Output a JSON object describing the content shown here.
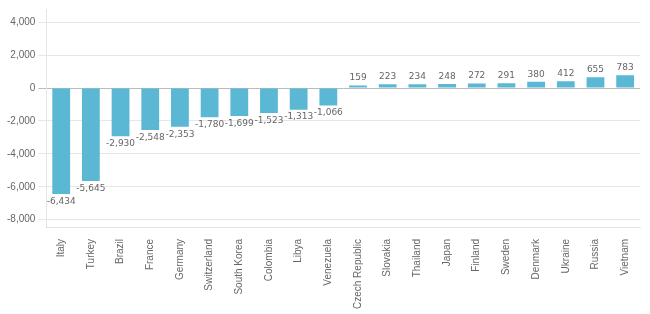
{
  "chart_data": {
    "type": "bar",
    "categories": [
      "Italy",
      "Turkey",
      "Brazil",
      "France",
      "Germany",
      "Switzerland",
      "South Korea",
      "Colombia",
      "Libya",
      "Venezuela",
      "Czech Republic",
      "Slovakia",
      "Thailand",
      "Japan",
      "Finland",
      "Sweden",
      "Denmark",
      "Ukraine",
      "Russia",
      "Vietnam"
    ],
    "values": [
      -6434,
      -5645,
      -2930,
      -2548,
      -2353,
      -1780,
      -1699,
      -1523,
      -1313,
      -1066,
      159,
      223,
      234,
      248,
      272,
      291,
      380,
      412,
      655,
      783
    ],
    "value_labels": [
      "-6,434",
      "-5,645",
      "-2,930",
      "-2,548",
      "-2,353",
      "-1,780",
      "-1,699",
      "-1,523",
      "-1,313",
      "-1,066",
      "159",
      "223",
      "234",
      "248",
      "272",
      "291",
      "380",
      "412",
      "655",
      "783"
    ],
    "color": "#5bb8d4",
    "ylim": [
      -8500,
      4800
    ],
    "yticks": [
      {
        "value": -8000,
        "label": "-8,000"
      },
      {
        "value": -6000,
        "label": "-6,000"
      },
      {
        "value": -4000,
        "label": "-4,000"
      },
      {
        "value": -2000,
        "label": "-2,000"
      },
      0,
      {
        "value": 2000,
        "label": "2,000"
      },
      {
        "value": 4000,
        "label": "4,000"
      }
    ],
    "grid": true,
    "data_labels": true
  }
}
